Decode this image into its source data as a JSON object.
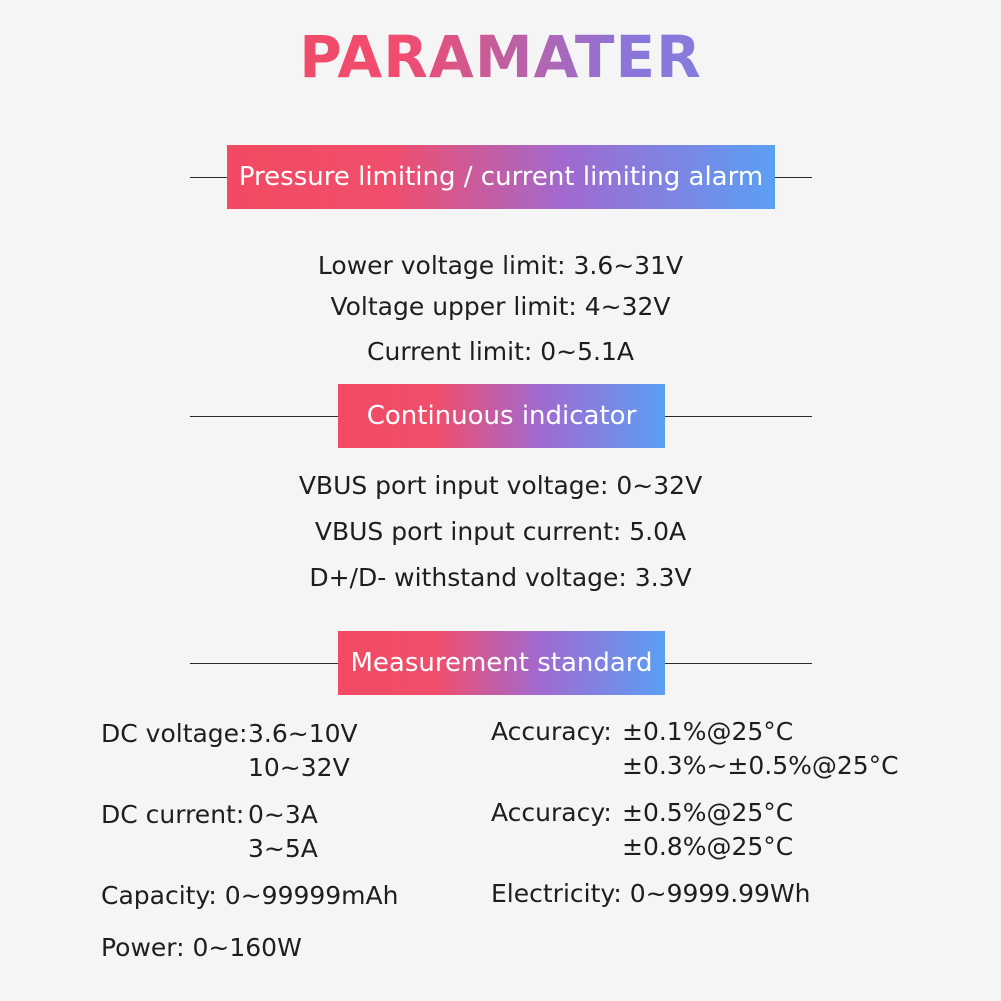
{
  "page_title": "PARAMATER",
  "sections": [
    {
      "title": "Pressure limiting / current limiting alarm",
      "lines": [
        "Lower voltage limit: 3.6~31V",
        "Voltage upper limit: 4~32V",
        "Current limit: 0~5.1A"
      ]
    },
    {
      "title": "Continuous indicator",
      "lines": [
        "VBUS port input voltage: 0~32V",
        "VBUS port input current: 5.0A",
        "D+/D- withstand voltage: 3.3V"
      ]
    },
    {
      "title": "Measurement standard",
      "left": [
        {
          "label": "DC voltage:",
          "values": [
            "3.6~10V",
            "10~32V"
          ]
        },
        {
          "label": "DC current:",
          "values": [
            "0~3A",
            "3~5A"
          ]
        },
        {
          "text": "Capacity: 0~99999mAh"
        },
        {
          "text": "Power: 0~160W"
        }
      ],
      "right": [
        {
          "label": "Accuracy:",
          "values": [
            "±0.1%@25°C",
            "±0.3%~±0.5%@25°C"
          ]
        },
        {
          "label": "Accuracy:",
          "values": [
            "±0.5%@25°C",
            "±0.8%@25°C"
          ]
        },
        {
          "text": "Electricity: 0~9999.99Wh"
        }
      ]
    }
  ]
}
